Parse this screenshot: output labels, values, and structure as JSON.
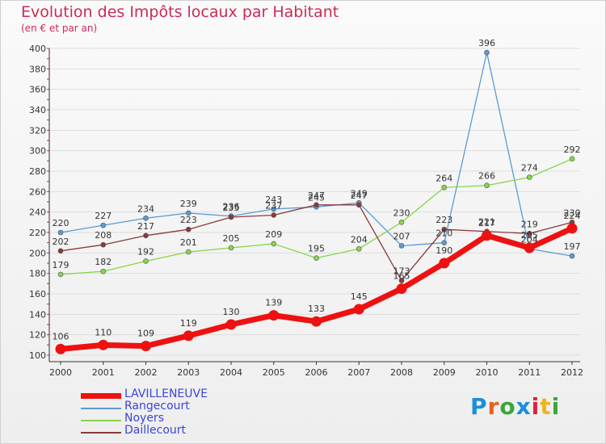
{
  "title": "Evolution des Impôts locaux par Habitant",
  "subtitle": "(en € et par an)",
  "brand": {
    "text": "Proxiti",
    "colors": [
      "#1a8fd8",
      "#e8621c",
      "#3aa63a",
      "#1a8fd8",
      "#e01f3d",
      "#f0b41c",
      "#3aa63a"
    ]
  },
  "chart_data": {
    "type": "line",
    "x": [
      2000,
      2001,
      2002,
      2003,
      2004,
      2005,
      2006,
      2007,
      2008,
      2009,
      2010,
      2011,
      2012
    ],
    "ylim": [
      100,
      400
    ],
    "yticks": [
      100,
      120,
      140,
      160,
      180,
      200,
      220,
      240,
      260,
      280,
      300,
      320,
      340,
      360,
      380,
      400
    ],
    "grid": "horizontal",
    "legend_position": "bottom-left",
    "series": [
      {
        "name": "Rangecourt",
        "color": "#5a9bd5",
        "values": [
          220,
          227,
          234,
          239,
          236,
          243,
          245,
          249,
          207,
          210,
          396,
          204,
          197
        ]
      },
      {
        "name": "Noyers",
        "color": "#86d64a",
        "values": [
          179,
          182,
          192,
          201,
          205,
          209,
          195,
          204,
          230,
          264,
          266,
          274,
          292
        ]
      },
      {
        "name": "Daillecourt",
        "color": "#8a3a3a",
        "values": [
          202,
          208,
          217,
          223,
          235,
          237,
          247,
          247,
          173,
          223,
          221,
          219,
          230
        ]
      },
      {
        "name": "LAVILLENEUVE",
        "color": "#ee1111",
        "values": [
          106,
          110,
          109,
          119,
          130,
          139,
          133,
          145,
          165,
          190,
          217,
          205,
          224
        ]
      }
    ],
    "legend": [
      "LAVILLENEUVE",
      "Rangecourt",
      "Noyers",
      "Daillecourt"
    ]
  }
}
